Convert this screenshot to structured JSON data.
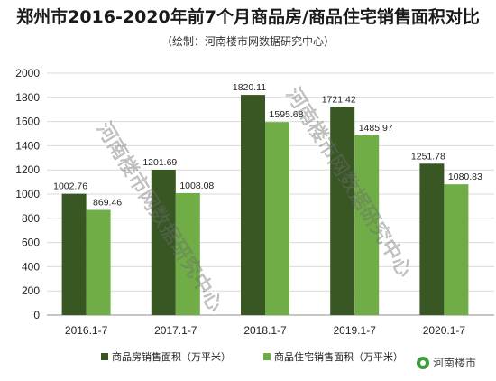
{
  "chart_data": {
    "type": "bar",
    "title": "郑州市2016-2020年前7个月商品房/商品住宅销售面积对比",
    "subtitle": "（绘制：河南楼市网数据研究中心）",
    "categories": [
      "2016.1-7",
      "2017.1-7",
      "2018.1-7",
      "2019.1-7",
      "2020.1-7"
    ],
    "series": [
      {
        "name": "商品房销售面积（万平米）",
        "values": [
          1002.76,
          1201.69,
          1820.11,
          1721.42,
          1251.78
        ],
        "color": "#385723"
      },
      {
        "name": "商品住宅销售面积（万平米）",
        "values": [
          869.46,
          1008.08,
          1595.68,
          1485.97,
          1080.83
        ],
        "color": "#70ad47"
      }
    ],
    "data_labels": [
      [
        "1002.76",
        "1201.69",
        "1820.11",
        "1721.42",
        "1251.78"
      ],
      [
        "869.46",
        "1008.08",
        "1595.68",
        "1485.97",
        "1080.83"
      ]
    ],
    "ylim": [
      0,
      2000
    ],
    "yticks": [
      0,
      200,
      400,
      600,
      800,
      1000,
      1200,
      1400,
      1600,
      1800,
      2000
    ],
    "xlabel": "",
    "ylabel": "",
    "grid": true,
    "legend_position": "bottom"
  },
  "watermark": "河南楼市网数据研究中心",
  "logo": {
    "text": "河南楼市",
    "icon": "wechat-logo-icon"
  }
}
